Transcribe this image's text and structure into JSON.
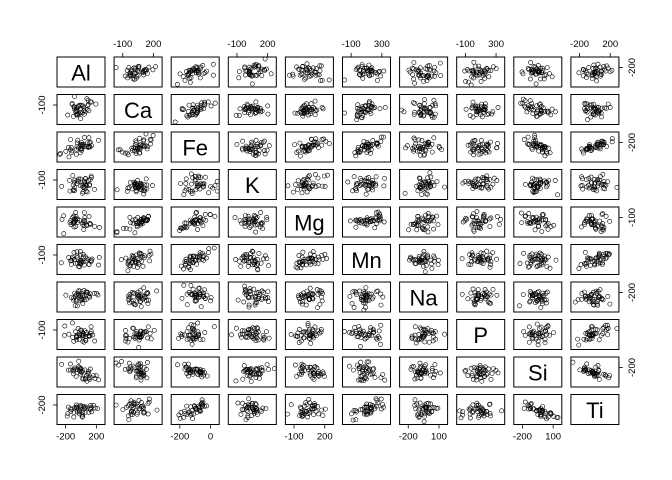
{
  "chart_data": {
    "type": "scatter",
    "variables": [
      "Al",
      "Ca",
      "Fe",
      "K",
      "Mg",
      "Mn",
      "Na",
      "P",
      "Si",
      "Ti"
    ],
    "layout": "pairs-matrix",
    "marker": "open-circle",
    "grid": false,
    "top_axis": [
      {
        "col": 2,
        "ticks": [
          "-100",
          "200"
        ]
      },
      {
        "col": 4,
        "ticks": [
          "-100",
          "200"
        ]
      },
      {
        "col": 6,
        "ticks": [
          "-100",
          "300"
        ]
      },
      {
        "col": 8,
        "ticks": [
          "-100",
          "300"
        ]
      },
      {
        "col": 10,
        "ticks": [
          "-200",
          "200"
        ]
      }
    ],
    "bottom_axis": [
      {
        "col": 1,
        "ticks": [
          "-200",
          "200"
        ]
      },
      {
        "col": 3,
        "ticks": [
          "-200",
          "0"
        ]
      },
      {
        "col": 5,
        "ticks": [
          "-100",
          "200"
        ]
      },
      {
        "col": 7,
        "ticks": [
          "-200",
          "100"
        ]
      },
      {
        "col": 9,
        "ticks": [
          "-200",
          "100"
        ]
      }
    ],
    "left_axis": [
      {
        "row": 2,
        "ticks": [
          "-100"
        ]
      },
      {
        "row": 4,
        "ticks": [
          "-100"
        ]
      },
      {
        "row": 6,
        "ticks": [
          "-100"
        ]
      },
      {
        "row": 8,
        "ticks": [
          "-100"
        ]
      },
      {
        "row": 10,
        "ticks": [
          "-200"
        ]
      }
    ],
    "right_axis": [
      {
        "row": 1,
        "ticks": [
          "-200"
        ]
      },
      {
        "row": 3,
        "ticks": [
          "-200"
        ]
      },
      {
        "row": 5,
        "ticks": [
          "-100"
        ]
      },
      {
        "row": 7,
        "ticks": [
          "-200"
        ]
      },
      {
        "row": 9,
        "ticks": [
          "-200"
        ]
      }
    ],
    "n_points_per_panel": 40,
    "seed": 7
  }
}
